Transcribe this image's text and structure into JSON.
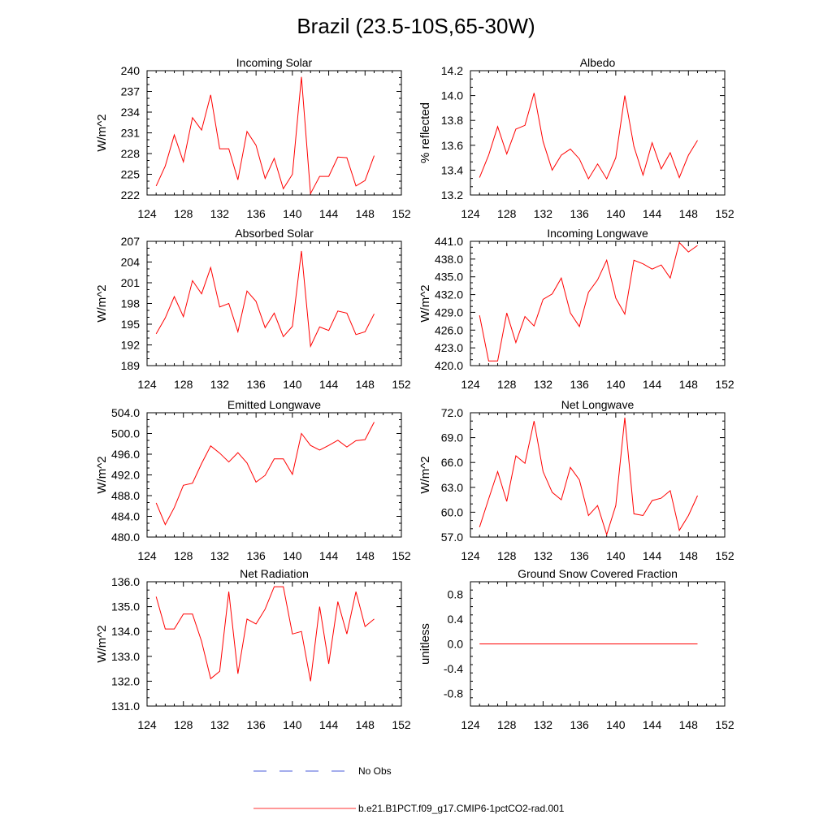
{
  "figure": {
    "title": "Brazil (23.5-10S,65-30W)",
    "legend": [
      {
        "label": "No Obs",
        "color": "#4a5bd8",
        "style": "dashed"
      },
      {
        "label": "b.e21.B1PCT.f09_g17.CMIP6-1pctCO2-rad.001",
        "color": "#ff3030",
        "style": "solid"
      }
    ]
  },
  "chart_data": [
    {
      "type": "line",
      "title": "Incoming Solar",
      "ylabel": "W/m^2",
      "xlim": [
        124,
        152
      ],
      "ylim": [
        222,
        240
      ],
      "xticks": [
        "124",
        "128",
        "132",
        "136",
        "140",
        "144",
        "148",
        "152"
      ],
      "yticks": [
        "222",
        "225",
        "228",
        "231",
        "234",
        "237",
        "240"
      ],
      "x": [
        125,
        126,
        127,
        128,
        129,
        130,
        131,
        132,
        133,
        134,
        135,
        136,
        137,
        138,
        139,
        140,
        141,
        142,
        143,
        144,
        145,
        146,
        147,
        148,
        149
      ],
      "series": [
        {
          "color": "#ff0000",
          "values": [
            223.3,
            226.2,
            230.7,
            226.8,
            233.2,
            231.4,
            236.5,
            228.7,
            228.7,
            224.2,
            231.2,
            229.2,
            224.4,
            227.3,
            222.9,
            225.0,
            239.1,
            222.2,
            224.7,
            224.7,
            227.5,
            227.4,
            223.3,
            224.1,
            227.7
          ]
        }
      ]
    },
    {
      "type": "line",
      "title": "Albedo",
      "ylabel": "% reflected",
      "xlim": [
        124,
        152
      ],
      "ylim": [
        13.2,
        14.2
      ],
      "xticks": [
        "124",
        "128",
        "132",
        "136",
        "140",
        "144",
        "148",
        "152"
      ],
      "yticks": [
        "13.2",
        "13.4",
        "13.6",
        "13.8",
        "14.0",
        "14.2"
      ],
      "x": [
        125,
        126,
        127,
        128,
        129,
        130,
        131,
        132,
        133,
        134,
        135,
        136,
        137,
        138,
        139,
        140,
        141,
        142,
        143,
        144,
        145,
        146,
        147,
        148,
        149
      ],
      "series": [
        {
          "color": "#ff0000",
          "values": [
            13.34,
            13.52,
            13.75,
            13.53,
            13.73,
            13.76,
            14.02,
            13.63,
            13.4,
            13.52,
            13.57,
            13.49,
            13.33,
            13.45,
            13.33,
            13.5,
            14.0,
            13.59,
            13.36,
            13.62,
            13.41,
            13.54,
            13.34,
            13.52,
            13.64
          ]
        }
      ]
    },
    {
      "type": "line",
      "title": "Absorbed Solar",
      "ylabel": "W/m^2",
      "xlim": [
        124,
        152
      ],
      "ylim": [
        189,
        207
      ],
      "xticks": [
        "124",
        "128",
        "132",
        "136",
        "140",
        "144",
        "148",
        "152"
      ],
      "yticks": [
        "189",
        "192",
        "195",
        "198",
        "201",
        "204",
        "207"
      ],
      "x": [
        125,
        126,
        127,
        128,
        129,
        130,
        131,
        132,
        133,
        134,
        135,
        136,
        137,
        138,
        139,
        140,
        141,
        142,
        143,
        144,
        145,
        146,
        147,
        148,
        149
      ],
      "series": [
        {
          "color": "#ff0000",
          "values": [
            193.6,
            195.9,
            199.0,
            196.1,
            201.3,
            199.4,
            203.2,
            197.5,
            198.0,
            193.9,
            199.8,
            198.3,
            194.5,
            196.6,
            193.2,
            194.7,
            205.6,
            191.8,
            194.6,
            194.1,
            196.9,
            196.6,
            193.5,
            193.9,
            196.5
          ]
        }
      ]
    },
    {
      "type": "line",
      "title": "Incoming Longwave",
      "ylabel": "W/m^2",
      "xlim": [
        124,
        152
      ],
      "ylim": [
        420.0,
        441.0
      ],
      "xticks": [
        "124",
        "128",
        "132",
        "136",
        "140",
        "144",
        "148",
        "152"
      ],
      "yticks": [
        "420.0",
        "423.0",
        "426.0",
        "429.0",
        "432.0",
        "435.0",
        "438.0",
        "441.0"
      ],
      "x": [
        125,
        126,
        127,
        128,
        129,
        130,
        131,
        132,
        133,
        134,
        135,
        136,
        137,
        138,
        139,
        140,
        141,
        142,
        143,
        144,
        145,
        146,
        147,
        148,
        149
      ],
      "series": [
        {
          "color": "#ff0000",
          "values": [
            428.5,
            420.8,
            420.8,
            428.9,
            423.9,
            428.3,
            426.7,
            431.2,
            432.1,
            434.8,
            428.9,
            426.6,
            432.4,
            434.5,
            437.8,
            431.4,
            428.7,
            437.8,
            437.2,
            436.3,
            437.0,
            434.8,
            440.8,
            439.2,
            440.3
          ]
        }
      ]
    },
    {
      "type": "line",
      "title": "Emitted Longwave",
      "ylabel": "W/m^2",
      "xlim": [
        124,
        152
      ],
      "ylim": [
        480.0,
        504.0
      ],
      "xticks": [
        "124",
        "128",
        "132",
        "136",
        "140",
        "144",
        "148",
        "152"
      ],
      "yticks": [
        "480.0",
        "484.0",
        "488.0",
        "492.0",
        "496.0",
        "500.0",
        "504.0"
      ],
      "x": [
        125,
        126,
        127,
        128,
        129,
        130,
        131,
        132,
        133,
        134,
        135,
        136,
        137,
        138,
        139,
        140,
        141,
        142,
        143,
        144,
        145,
        146,
        147,
        148,
        149
      ],
      "series": [
        {
          "color": "#ff0000",
          "values": [
            486.6,
            482.4,
            485.7,
            490.0,
            490.4,
            494.2,
            497.6,
            496.2,
            494.5,
            496.3,
            494.3,
            490.6,
            491.9,
            495.1,
            495.1,
            492.1,
            500.0,
            497.7,
            496.8,
            497.7,
            498.7,
            497.4,
            498.6,
            498.8,
            502.2
          ]
        }
      ]
    },
    {
      "type": "line",
      "title": "Net Longwave",
      "ylabel": "W/m^2",
      "xlim": [
        124,
        152
      ],
      "ylim": [
        57.0,
        72.0
      ],
      "xticks": [
        "124",
        "128",
        "132",
        "136",
        "140",
        "144",
        "148",
        "152"
      ],
      "yticks": [
        "57.0",
        "60.0",
        "63.0",
        "66.0",
        "69.0",
        "72.0"
      ],
      "x": [
        125,
        126,
        127,
        128,
        129,
        130,
        131,
        132,
        133,
        134,
        135,
        136,
        137,
        138,
        139,
        140,
        141,
        142,
        143,
        144,
        145,
        146,
        147,
        148,
        149
      ],
      "series": [
        {
          "color": "#ff0000",
          "values": [
            58.2,
            61.6,
            64.9,
            61.3,
            66.8,
            65.9,
            71.0,
            64.9,
            62.4,
            61.5,
            65.4,
            63.9,
            59.6,
            60.8,
            57.3,
            60.8,
            71.4,
            59.8,
            59.6,
            61.4,
            61.7,
            62.6,
            57.8,
            59.6,
            62.0
          ]
        }
      ]
    },
    {
      "type": "line",
      "title": "Net Radiation",
      "ylabel": "W/m^2",
      "xlim": [
        124,
        152
      ],
      "ylim": [
        131.0,
        136.0
      ],
      "xticks": [
        "124",
        "128",
        "132",
        "136",
        "140",
        "144",
        "148",
        "152"
      ],
      "yticks": [
        "131.0",
        "132.0",
        "133.0",
        "134.0",
        "135.0",
        "136.0"
      ],
      "x": [
        125,
        126,
        127,
        128,
        129,
        130,
        131,
        132,
        133,
        134,
        135,
        136,
        137,
        138,
        139,
        140,
        141,
        142,
        143,
        144,
        145,
        146,
        147,
        148,
        149
      ],
      "series": [
        {
          "color": "#ff0000",
          "values": [
            135.4,
            134.1,
            134.1,
            134.7,
            134.7,
            133.6,
            132.1,
            132.4,
            135.6,
            132.3,
            134.5,
            134.3,
            134.9,
            135.8,
            135.8,
            133.9,
            134.0,
            132.0,
            135.0,
            132.7,
            135.2,
            133.9,
            135.6,
            134.2,
            134.5
          ]
        }
      ]
    },
    {
      "type": "line",
      "title": "Ground Snow Covered Fraction",
      "ylabel": "unitless",
      "xlim": [
        124,
        152
      ],
      "ylim": [
        -1.0,
        1.0
      ],
      "xticks": [
        "124",
        "128",
        "132",
        "136",
        "140",
        "144",
        "148",
        "152"
      ],
      "ytick_values": [
        -0.8,
        -0.4,
        0.0,
        0.4,
        0.8
      ],
      "yticks": [
        "-0.8",
        "-0.4",
        "0.0",
        "0.4",
        "0.8"
      ],
      "x": [
        125,
        126,
        127,
        128,
        129,
        130,
        131,
        132,
        133,
        134,
        135,
        136,
        137,
        138,
        139,
        140,
        141,
        142,
        143,
        144,
        145,
        146,
        147,
        148,
        149
      ],
      "series": [
        {
          "color": "#ff0000",
          "values": [
            0,
            0,
            0,
            0,
            0,
            0,
            0,
            0,
            0,
            0,
            0,
            0,
            0,
            0,
            0,
            0,
            0,
            0,
            0,
            0,
            0,
            0,
            0,
            0,
            0
          ]
        }
      ]
    }
  ]
}
